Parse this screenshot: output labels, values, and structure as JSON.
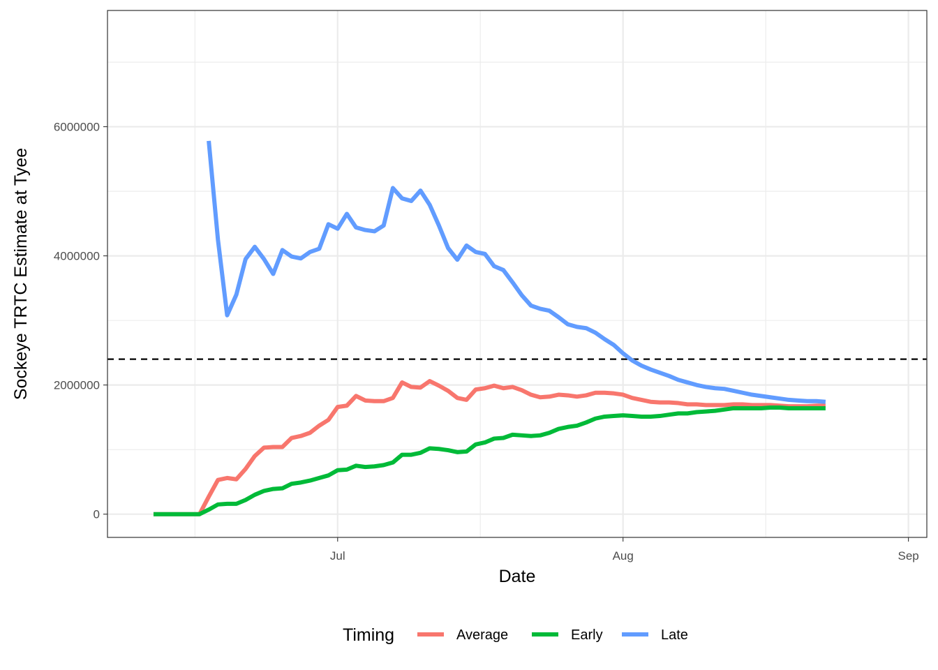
{
  "chart_data": {
    "type": "line",
    "title": "",
    "xlabel": "Date",
    "ylabel": "Sockeye TRTC Estimate at Tyee",
    "x_tick_labels": [
      {
        "date": "2023-07-01",
        "label": "Jul"
      },
      {
        "date": "2023-08-01",
        "label": "Aug"
      },
      {
        "date": "2023-09-01",
        "label": "Sep"
      }
    ],
    "y_ticks": [
      0,
      2000000,
      4000000,
      6000000
    ],
    "xlim": [
      "2023-06-06",
      "2023-09-03"
    ],
    "ylim": [
      -360000,
      7800000
    ],
    "grid": true,
    "reference_line": {
      "y": 2400000,
      "style": "dashed"
    },
    "legend": {
      "title": "Timing",
      "position": "bottom"
    },
    "series": [
      {
        "name": "Average",
        "color": "#F8766D",
        "dates": [
          "2023-06-11",
          "2023-06-12",
          "2023-06-13",
          "2023-06-14",
          "2023-06-15",
          "2023-06-16",
          "2023-06-17",
          "2023-06-18",
          "2023-06-19",
          "2023-06-20",
          "2023-06-21",
          "2023-06-22",
          "2023-06-23",
          "2023-06-24",
          "2023-06-25",
          "2023-06-26",
          "2023-06-27",
          "2023-06-28",
          "2023-06-29",
          "2023-06-30",
          "2023-07-01",
          "2023-07-02",
          "2023-07-03",
          "2023-07-04",
          "2023-07-05",
          "2023-07-06",
          "2023-07-07",
          "2023-07-08",
          "2023-07-09",
          "2023-07-10",
          "2023-07-11",
          "2023-07-12",
          "2023-07-13",
          "2023-07-14",
          "2023-07-15",
          "2023-07-16",
          "2023-07-17",
          "2023-07-18",
          "2023-07-19",
          "2023-07-20",
          "2023-07-21",
          "2023-07-22",
          "2023-07-23",
          "2023-07-24",
          "2023-07-25",
          "2023-07-26",
          "2023-07-27",
          "2023-07-28",
          "2023-07-29",
          "2023-07-30",
          "2023-07-31",
          "2023-08-01",
          "2023-08-02",
          "2023-08-03",
          "2023-08-04",
          "2023-08-05",
          "2023-08-06",
          "2023-08-07",
          "2023-08-08",
          "2023-08-09",
          "2023-08-10",
          "2023-08-11",
          "2023-08-12",
          "2023-08-13",
          "2023-08-14",
          "2023-08-15",
          "2023-08-16",
          "2023-08-17",
          "2023-08-18",
          "2023-08-19",
          "2023-08-20",
          "2023-08-21",
          "2023-08-22",
          "2023-08-23"
        ],
        "values": [
          0,
          0,
          0,
          0,
          0,
          0,
          270000,
          530000,
          560000,
          540000,
          700000,
          900000,
          1030000,
          1040000,
          1040000,
          1180000,
          1210000,
          1260000,
          1370000,
          1460000,
          1660000,
          1680000,
          1830000,
          1760000,
          1750000,
          1750000,
          1800000,
          2040000,
          1970000,
          1960000,
          2060000,
          1990000,
          1910000,
          1800000,
          1770000,
          1930000,
          1950000,
          1990000,
          1950000,
          1970000,
          1920000,
          1850000,
          1810000,
          1820000,
          1850000,
          1840000,
          1820000,
          1840000,
          1880000,
          1880000,
          1870000,
          1850000,
          1800000,
          1770000,
          1740000,
          1730000,
          1730000,
          1720000,
          1700000,
          1700000,
          1690000,
          1690000,
          1690000,
          1700000,
          1700000,
          1690000,
          1690000,
          1690000,
          1680000,
          1670000,
          1670000,
          1670000,
          1680000,
          1680000
        ]
      },
      {
        "name": "Early",
        "color": "#00BA38",
        "dates": [
          "2023-06-11",
          "2023-06-12",
          "2023-06-13",
          "2023-06-14",
          "2023-06-15",
          "2023-06-16",
          "2023-06-17",
          "2023-06-18",
          "2023-06-19",
          "2023-06-20",
          "2023-06-21",
          "2023-06-22",
          "2023-06-23",
          "2023-06-24",
          "2023-06-25",
          "2023-06-26",
          "2023-06-27",
          "2023-06-28",
          "2023-06-29",
          "2023-06-30",
          "2023-07-01",
          "2023-07-02",
          "2023-07-03",
          "2023-07-04",
          "2023-07-05",
          "2023-07-06",
          "2023-07-07",
          "2023-07-08",
          "2023-07-09",
          "2023-07-10",
          "2023-07-11",
          "2023-07-12",
          "2023-07-13",
          "2023-07-14",
          "2023-07-15",
          "2023-07-16",
          "2023-07-17",
          "2023-07-18",
          "2023-07-19",
          "2023-07-20",
          "2023-07-21",
          "2023-07-22",
          "2023-07-23",
          "2023-07-24",
          "2023-07-25",
          "2023-07-26",
          "2023-07-27",
          "2023-07-28",
          "2023-07-29",
          "2023-07-30",
          "2023-07-31",
          "2023-08-01",
          "2023-08-02",
          "2023-08-03",
          "2023-08-04",
          "2023-08-05",
          "2023-08-06",
          "2023-08-07",
          "2023-08-08",
          "2023-08-09",
          "2023-08-10",
          "2023-08-11",
          "2023-08-12",
          "2023-08-13",
          "2023-08-14",
          "2023-08-15",
          "2023-08-16",
          "2023-08-17",
          "2023-08-18",
          "2023-08-19",
          "2023-08-20",
          "2023-08-21",
          "2023-08-22",
          "2023-08-23"
        ],
        "values": [
          0,
          0,
          0,
          0,
          0,
          0,
          70000,
          150000,
          160000,
          160000,
          220000,
          300000,
          360000,
          390000,
          400000,
          470000,
          490000,
          520000,
          560000,
          600000,
          680000,
          690000,
          750000,
          730000,
          740000,
          760000,
          800000,
          920000,
          920000,
          950000,
          1020000,
          1010000,
          990000,
          960000,
          970000,
          1080000,
          1110000,
          1170000,
          1180000,
          1230000,
          1220000,
          1210000,
          1220000,
          1260000,
          1320000,
          1350000,
          1370000,
          1420000,
          1480000,
          1510000,
          1520000,
          1530000,
          1520000,
          1510000,
          1510000,
          1520000,
          1540000,
          1560000,
          1560000,
          1580000,
          1590000,
          1600000,
          1620000,
          1640000,
          1640000,
          1640000,
          1640000,
          1650000,
          1650000,
          1640000,
          1640000,
          1640000,
          1640000,
          1640000
        ]
      },
      {
        "name": "Late",
        "color": "#619CFF",
        "dates": [
          "2023-06-17",
          "2023-06-18",
          "2023-06-19",
          "2023-06-20",
          "2023-06-21",
          "2023-06-22",
          "2023-06-23",
          "2023-06-24",
          "2023-06-25",
          "2023-06-26",
          "2023-06-27",
          "2023-06-28",
          "2023-06-29",
          "2023-06-30",
          "2023-07-01",
          "2023-07-02",
          "2023-07-03",
          "2023-07-04",
          "2023-07-05",
          "2023-07-06",
          "2023-07-07",
          "2023-07-08",
          "2023-07-09",
          "2023-07-10",
          "2023-07-11",
          "2023-07-12",
          "2023-07-13",
          "2023-07-14",
          "2023-07-15",
          "2023-07-16",
          "2023-07-17",
          "2023-07-18",
          "2023-07-19",
          "2023-07-20",
          "2023-07-21",
          "2023-07-22",
          "2023-07-23",
          "2023-07-24",
          "2023-07-25",
          "2023-07-26",
          "2023-07-27",
          "2023-07-28",
          "2023-07-29",
          "2023-07-30",
          "2023-07-31",
          "2023-08-01",
          "2023-08-02",
          "2023-08-03",
          "2023-08-04",
          "2023-08-05",
          "2023-08-06",
          "2023-08-07",
          "2023-08-08",
          "2023-08-09",
          "2023-08-10",
          "2023-08-11",
          "2023-08-12",
          "2023-08-13",
          "2023-08-14",
          "2023-08-15",
          "2023-08-16",
          "2023-08-17",
          "2023-08-18",
          "2023-08-19",
          "2023-08-20",
          "2023-08-21",
          "2023-08-22",
          "2023-08-23"
        ],
        "values": [
          5780000,
          4250000,
          3080000,
          3400000,
          3950000,
          4140000,
          3950000,
          3720000,
          4090000,
          3990000,
          3960000,
          4060000,
          4110000,
          4490000,
          4420000,
          4650000,
          4440000,
          4400000,
          4380000,
          4470000,
          5050000,
          4890000,
          4850000,
          5010000,
          4790000,
          4470000,
          4120000,
          3940000,
          4160000,
          4060000,
          4030000,
          3840000,
          3780000,
          3590000,
          3390000,
          3230000,
          3180000,
          3150000,
          3050000,
          2940000,
          2900000,
          2880000,
          2810000,
          2710000,
          2620000,
          2490000,
          2380000,
          2300000,
          2240000,
          2190000,
          2140000,
          2080000,
          2040000,
          2000000,
          1970000,
          1950000,
          1940000,
          1910000,
          1880000,
          1850000,
          1830000,
          1810000,
          1790000,
          1770000,
          1760000,
          1750000,
          1750000,
          1740000
        ]
      }
    ]
  }
}
